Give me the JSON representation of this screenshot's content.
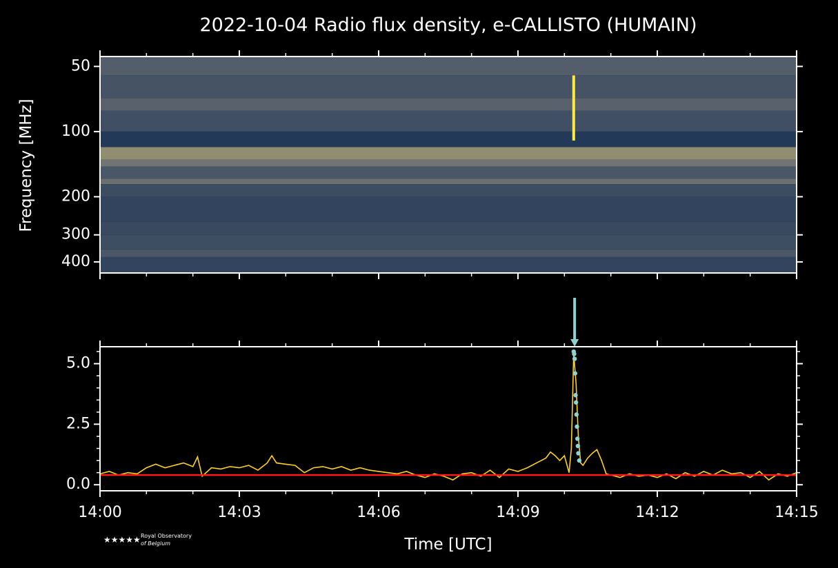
{
  "chart_data": [
    {
      "type": "heatmap",
      "title": "2022-10-04 Radio flux density, e-CALLISTO (HUMAIN)",
      "ylabel": "Frequency [MHz]",
      "ylog": true,
      "yinvert": true,
      "ylim": [
        45,
        450
      ],
      "yticks": [
        50,
        100,
        200,
        300,
        400
      ],
      "xlim": [
        0,
        15
      ],
      "xticks": [
        0,
        3,
        6,
        9,
        12,
        15
      ],
      "xminorticks": [
        1,
        2,
        4,
        5,
        7,
        8,
        10,
        11,
        13,
        14
      ],
      "colormap": [
        "#00204c",
        "#7c7b78",
        "#ffe945"
      ],
      "freq_edges": [
        45,
        55,
        70,
        80,
        100,
        118,
        135,
        145,
        165,
        175,
        200,
        260,
        300,
        350,
        380,
        450
      ],
      "intensity": [
        0.34,
        0.28,
        0.36,
        0.26,
        0.14,
        0.58,
        0.46,
        0.3,
        0.44,
        0.24,
        0.2,
        0.23,
        0.25,
        0.3,
        0.2
      ],
      "burst_x": 10.2,
      "burst_freq": [
        55,
        110
      ]
    },
    {
      "type": "line",
      "xlabel": "Time [UTC]",
      "xlim": [
        0,
        15
      ],
      "xticks": [
        {
          "value": 0,
          "label": "14:00"
        },
        {
          "value": 3,
          "label": "14:03"
        },
        {
          "value": 6,
          "label": "14:06"
        },
        {
          "value": 9,
          "label": "14:09"
        },
        {
          "value": 12,
          "label": "14:12"
        },
        {
          "value": 15,
          "label": "14:15"
        }
      ],
      "xminorticks": [
        1,
        2,
        4,
        5,
        7,
        8,
        10,
        11,
        13,
        14
      ],
      "ylim": [
        -0.25,
        5.7
      ],
      "yticks": [
        {
          "value": 0,
          "label": "0.0"
        },
        2.5,
        {
          "value": 5,
          "label": "5.0"
        }
      ],
      "yminorticks": [
        0.5,
        1,
        1.5,
        2,
        3,
        3.5,
        4,
        4.5,
        5.5
      ],
      "series": [
        {
          "kind": "line",
          "color": "#ffd21e",
          "x": [
            0,
            0.2,
            0.4,
            0.6,
            0.8,
            1.0,
            1.2,
            1.4,
            1.6,
            1.8,
            2.0,
            2.1,
            2.2,
            2.4,
            2.6,
            2.8,
            3.0,
            3.2,
            3.4,
            3.6,
            3.7,
            3.8,
            4.0,
            4.2,
            4.4,
            4.6,
            4.8,
            5.0,
            5.2,
            5.4,
            5.6,
            5.8,
            6.0,
            6.2,
            6.4,
            6.6,
            6.8,
            7.0,
            7.2,
            7.4,
            7.6,
            7.8,
            8.0,
            8.2,
            8.4,
            8.6,
            8.8,
            9.0,
            9.2,
            9.4,
            9.6,
            9.7,
            9.8,
            9.9,
            10.0,
            10.1,
            10.15,
            10.2,
            10.25,
            10.3,
            10.35,
            10.4,
            10.5,
            10.6,
            10.7,
            10.8,
            10.9,
            11.0,
            11.2,
            11.4,
            11.6,
            11.8,
            12.0,
            12.2,
            12.4,
            12.6,
            12.8,
            13.0,
            13.2,
            13.4,
            13.6,
            13.8,
            14.0,
            14.2,
            14.4,
            14.6,
            14.8,
            15.0
          ],
          "values": [
            0.45,
            0.55,
            0.4,
            0.5,
            0.45,
            0.7,
            0.85,
            0.7,
            0.8,
            0.9,
            0.75,
            1.15,
            0.35,
            0.7,
            0.65,
            0.75,
            0.7,
            0.8,
            0.6,
            0.9,
            1.2,
            0.9,
            0.85,
            0.8,
            0.5,
            0.7,
            0.75,
            0.65,
            0.75,
            0.6,
            0.7,
            0.6,
            0.55,
            0.5,
            0.45,
            0.55,
            0.4,
            0.3,
            0.45,
            0.35,
            0.2,
            0.45,
            0.5,
            0.35,
            0.6,
            0.3,
            0.65,
            0.55,
            0.7,
            0.9,
            1.1,
            1.35,
            1.2,
            1.0,
            1.2,
            0.5,
            1.5,
            5.4,
            4.2,
            2.0,
            0.9,
            0.8,
            1.1,
            1.3,
            1.45,
            1.0,
            0.45,
            0.4,
            0.3,
            0.45,
            0.35,
            0.4,
            0.3,
            0.45,
            0.25,
            0.5,
            0.35,
            0.55,
            0.4,
            0.6,
            0.45,
            0.5,
            0.3,
            0.55,
            0.2,
            0.45,
            0.35,
            0.5
          ]
        },
        {
          "kind": "scatter",
          "color": "#8fd3d0",
          "x": [
            10.2,
            10.21,
            10.22,
            10.23,
            10.24,
            10.25,
            10.26,
            10.27,
            10.28,
            10.29,
            10.3,
            10.32
          ],
          "values": [
            5.5,
            5.4,
            5.2,
            4.6,
            3.7,
            3.4,
            2.9,
            2.4,
            1.9,
            1.6,
            1.3,
            1.0
          ]
        },
        {
          "kind": "hline",
          "color": "#ff1a1a",
          "values": [
            0.4
          ]
        }
      ],
      "arrow_x": 10.22,
      "arrow_color": "#8fd3d0"
    }
  ],
  "logo": [
    "Royal Observatory",
    "of Belgium"
  ]
}
